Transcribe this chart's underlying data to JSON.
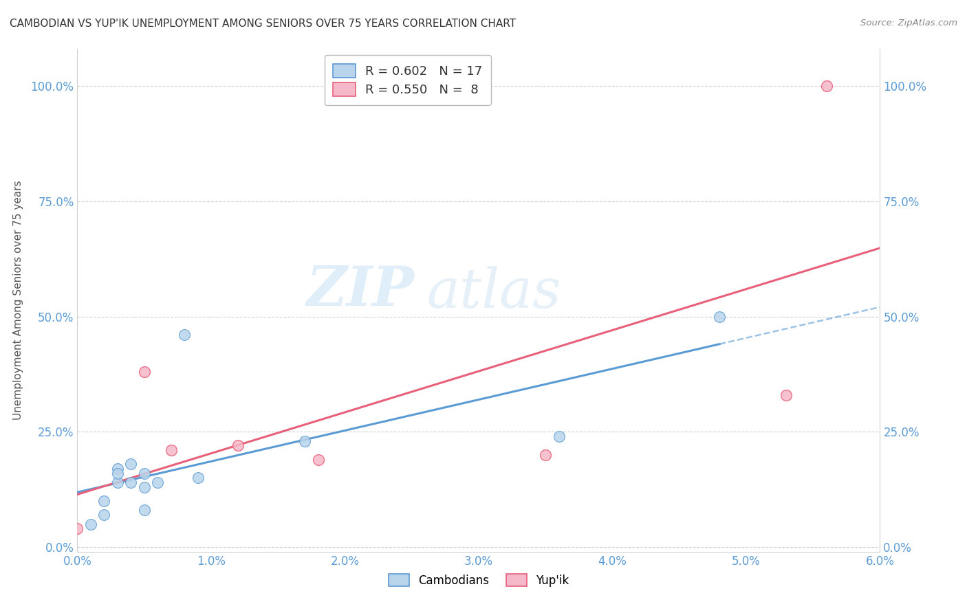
{
  "title": "CAMBODIAN VS YUP'IK UNEMPLOYMENT AMONG SENIORS OVER 75 YEARS CORRELATION CHART",
  "source": "Source: ZipAtlas.com",
  "xlabel": "",
  "ylabel": "Unemployment Among Seniors over 75 years",
  "xlim": [
    0.0,
    0.06
  ],
  "ylim": [
    -0.01,
    1.08
  ],
  "xticks": [
    0.0,
    0.01,
    0.02,
    0.03,
    0.04,
    0.05,
    0.06
  ],
  "xtick_labels": [
    "0.0%",
    "1.0%",
    "2.0%",
    "3.0%",
    "4.0%",
    "5.0%",
    "6.0%"
  ],
  "yticks": [
    0.0,
    0.25,
    0.5,
    0.75,
    1.0
  ],
  "ytick_labels": [
    "0.0%",
    "25.0%",
    "50.0%",
    "75.0%",
    "100.0%"
  ],
  "cambodians_x": [
    0.001,
    0.002,
    0.002,
    0.003,
    0.003,
    0.003,
    0.004,
    0.004,
    0.005,
    0.005,
    0.005,
    0.006,
    0.008,
    0.009,
    0.017,
    0.036,
    0.048
  ],
  "cambodians_y": [
    0.05,
    0.1,
    0.07,
    0.17,
    0.14,
    0.16,
    0.14,
    0.18,
    0.08,
    0.13,
    0.16,
    0.14,
    0.46,
    0.15,
    0.23,
    0.24,
    0.5
  ],
  "yupik_x": [
    0.0,
    0.005,
    0.007,
    0.012,
    0.018,
    0.035,
    0.053,
    0.056
  ],
  "yupik_y": [
    0.04,
    0.38,
    0.21,
    0.22,
    0.19,
    0.2,
    0.33,
    1.0
  ],
  "cambodians_color": "#b8d4ea",
  "yupik_color": "#f5b8c8",
  "cambodians_line_color": "#5b9bd5",
  "yupik_line_color": "#e8607a",
  "r_cambodians": "0.602",
  "n_cambodians": "17",
  "r_yupik": "0.550",
  "n_yupik": "8",
  "marker_size": 130,
  "watermark_zip": "ZIP",
  "watermark_atlas": "atlas",
  "background_color": "#ffffff",
  "grid_color": "#d0d0d0",
  "tick_color": "#5b9bd5",
  "title_color": "#333333",
  "ylabel_color": "#555555",
  "source_color": "#888888"
}
